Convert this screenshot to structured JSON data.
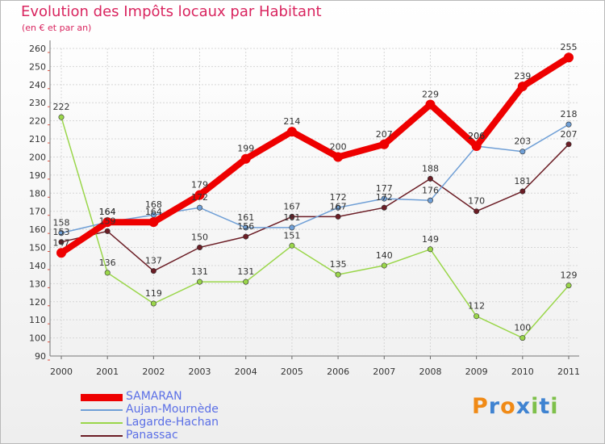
{
  "chart_data": {
    "type": "line",
    "title": "Evolution des Impôts locaux par Habitant",
    "subtitle": "(en € et par an)",
    "xlabel": "",
    "ylabel": "",
    "categories": [
      "2000",
      "2001",
      "2002",
      "2003",
      "2004",
      "2005",
      "2006",
      "2007",
      "2008",
      "2009",
      "2010",
      "2011"
    ],
    "ylim": [
      90,
      260
    ],
    "yticks": [
      90,
      100,
      110,
      120,
      130,
      140,
      150,
      160,
      170,
      180,
      190,
      200,
      210,
      220,
      230,
      240,
      250,
      260
    ],
    "grid": true,
    "legend_position": "bottom-left",
    "series": [
      {
        "name": "SAMARAN",
        "color": "#ee0000",
        "values": [
          147,
          164,
          164,
          179,
          199,
          214,
          200,
          207,
          229,
          206,
          239,
          255
        ]
      },
      {
        "name": "Aujan-Mournède",
        "color": "#6f9fd6",
        "values": [
          158,
          164,
          168,
          172,
          161,
          161,
          172,
          177,
          176,
          206,
          203,
          218
        ]
      },
      {
        "name": "Lagarde-Hachan",
        "color": "#9ad64a",
        "values": [
          222,
          136,
          119,
          131,
          131,
          151,
          135,
          140,
          149,
          112,
          100,
          129
        ]
      },
      {
        "name": "Panassac",
        "color": "#6b1d25",
        "values": [
          153,
          159,
          137,
          150,
          156,
          167,
          167,
          172,
          188,
          170,
          181,
          207
        ]
      }
    ]
  },
  "logo": {
    "text": "Proxiti",
    "colors": [
      "#f08a16",
      "#3f83d1",
      "#f08a16",
      "#3f83d1",
      "#7ec04a",
      "#3f83d1",
      "#7ec04a"
    ]
  }
}
